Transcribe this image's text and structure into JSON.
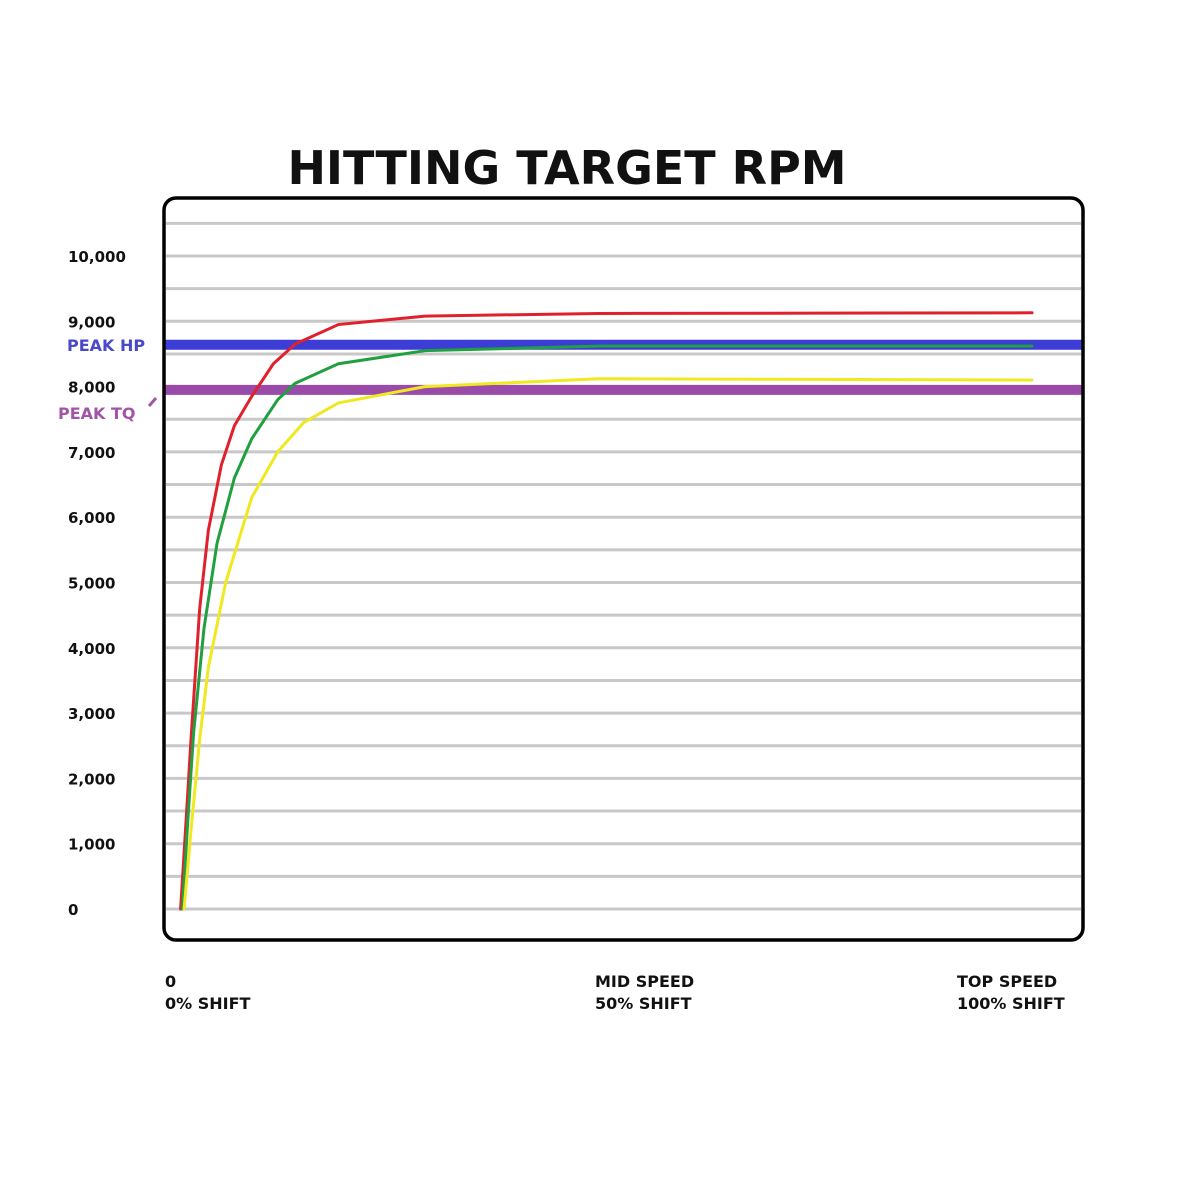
{
  "chart_data": {
    "type": "line",
    "title": "HITTING TARGET RPM",
    "xlabel": "",
    "ylabel": "",
    "xlim": [
      0,
      100
    ],
    "ylim": [
      0,
      10500
    ],
    "grid": true,
    "y_ticks": [
      0,
      1000,
      2000,
      3000,
      4000,
      5000,
      6000,
      7000,
      8000,
      9000,
      10000
    ],
    "y_tick_labels": [
      "0",
      "1,000",
      "2,000",
      "3,000",
      "4,000",
      "5,000",
      "6,000",
      "7,000",
      "8,000",
      "9,000",
      "10,000"
    ],
    "x_tick_labels": [
      {
        "value": 0,
        "line1": "0",
        "line2": "0% SHIFT"
      },
      {
        "value": 50,
        "line1": "MID SPEED",
        "line2": "50% SHIFT"
      },
      {
        "value": 100,
        "line1": "TOP SPEED",
        "line2": "100% SHIFT"
      }
    ],
    "reference_lines": [
      {
        "label": "PEAK HP",
        "value": 8640,
        "color": "#3c3cd6",
        "label_color": "#4a4ac8"
      },
      {
        "label": "PEAK TQ",
        "value": 7950,
        "color": "#9a4aa8",
        "label_color": "#a055a5"
      }
    ],
    "series": [
      {
        "color": "#e0202c",
        "points": [
          [
            1.8,
            0
          ],
          [
            2.5,
            1500
          ],
          [
            3,
            2600
          ],
          [
            4,
            4600
          ],
          [
            5,
            5800
          ],
          [
            6.5,
            6800
          ],
          [
            8,
            7400
          ],
          [
            10,
            7850
          ],
          [
            12.5,
            8350
          ],
          [
            15,
            8650
          ],
          [
            20,
            8950
          ],
          [
            30,
            9080
          ],
          [
            50,
            9120
          ],
          [
            100,
            9130
          ]
        ]
      },
      {
        "color": "#20a040",
        "points": [
          [
            2,
            0
          ],
          [
            2.7,
            1500
          ],
          [
            3.3,
            2700
          ],
          [
            4.5,
            4300
          ],
          [
            6,
            5600
          ],
          [
            8,
            6600
          ],
          [
            10,
            7200
          ],
          [
            13,
            7800
          ],
          [
            15,
            8050
          ],
          [
            20,
            8350
          ],
          [
            30,
            8550
          ],
          [
            50,
            8620
          ],
          [
            100,
            8620
          ]
        ]
      },
      {
        "color": "#f0e820",
        "points": [
          [
            2.2,
            0
          ],
          [
            3,
            1200
          ],
          [
            4,
            2600
          ],
          [
            5,
            3700
          ],
          [
            7,
            5000
          ],
          [
            10,
            6300
          ],
          [
            13,
            7000
          ],
          [
            16,
            7450
          ],
          [
            20,
            7750
          ],
          [
            30,
            8000
          ],
          [
            50,
            8120
          ],
          [
            75,
            8110
          ],
          [
            100,
            8100
          ]
        ]
      }
    ]
  }
}
